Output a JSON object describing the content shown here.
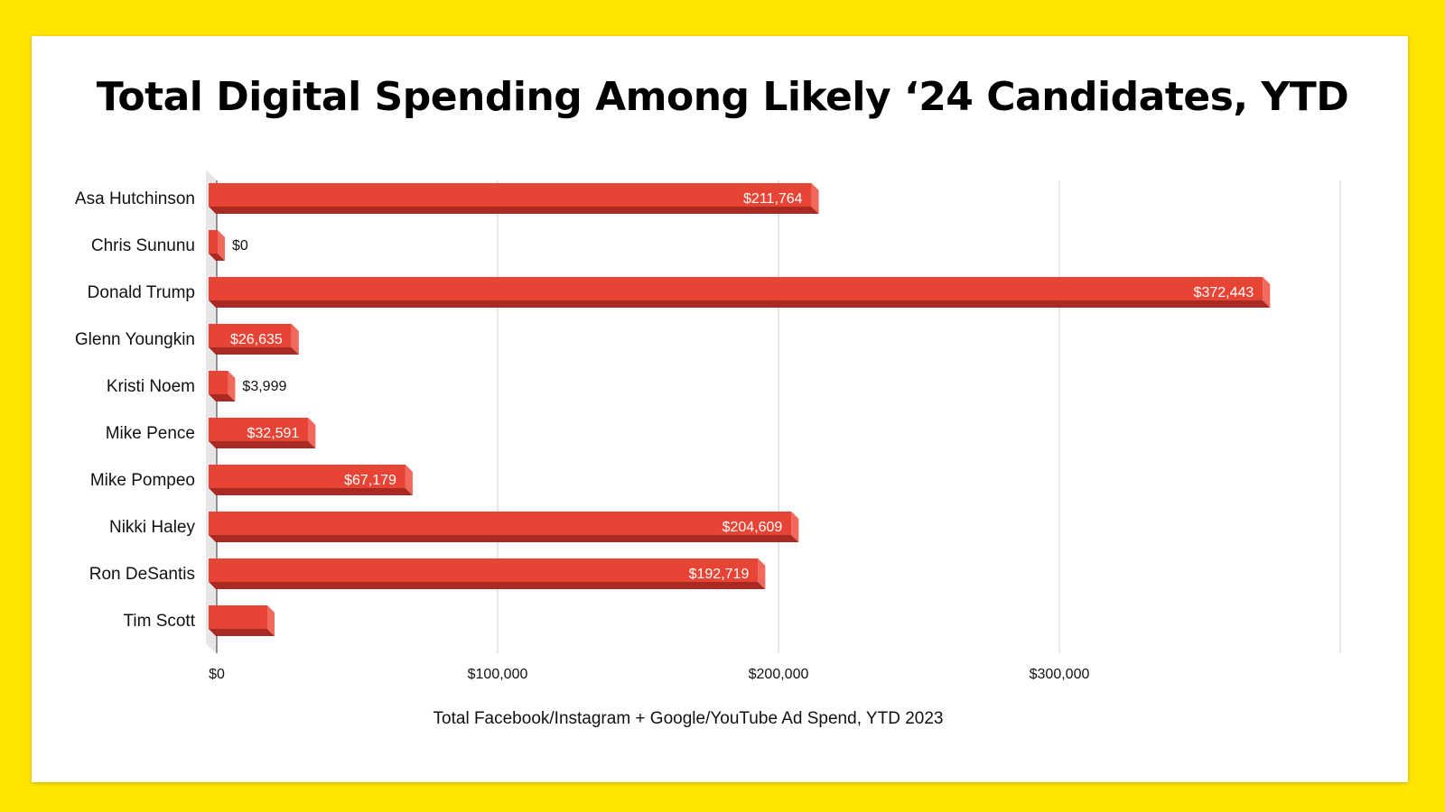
{
  "chart_data": {
    "type": "bar",
    "orientation": "horizontal",
    "title": "Total Digital Spending Among Likely ‘24 Candidates, YTD",
    "xlabel": "Total Facebook/Instagram + Google/YouTube Ad Spend, YTD 2023",
    "ylabel": "",
    "categories": [
      "Asa Hutchinson",
      "Chris Sununu",
      "Donald Trump",
      "Glenn Youngkin",
      "Kristi Noem",
      "Mike Pence",
      "Mike Pompeo",
      "Nikki Haley",
      "Ron DeSantis",
      "Tim Scott"
    ],
    "values": [
      211764,
      0,
      372443,
      26635,
      3999,
      32591,
      67179,
      204609,
      192719,
      18000
    ],
    "data_labels": [
      "$211,764",
      "$0",
      "$372,443",
      "$26,635",
      "$3,999",
      "$32,591",
      "$67,179",
      "$204,609",
      "$192,719",
      ""
    ],
    "xlim": [
      0,
      400000
    ],
    "xticks": [
      0,
      100000,
      200000,
      300000
    ],
    "xtick_labels": [
      "$0",
      "$100,000",
      "$200,000",
      "$300,000"
    ],
    "grid": true,
    "legend": "none",
    "bar_color": "#E84435",
    "bar_shade_color": "#A82A22",
    "bar_edge_color": "#F0695C",
    "background_color": "#FFE600"
  }
}
